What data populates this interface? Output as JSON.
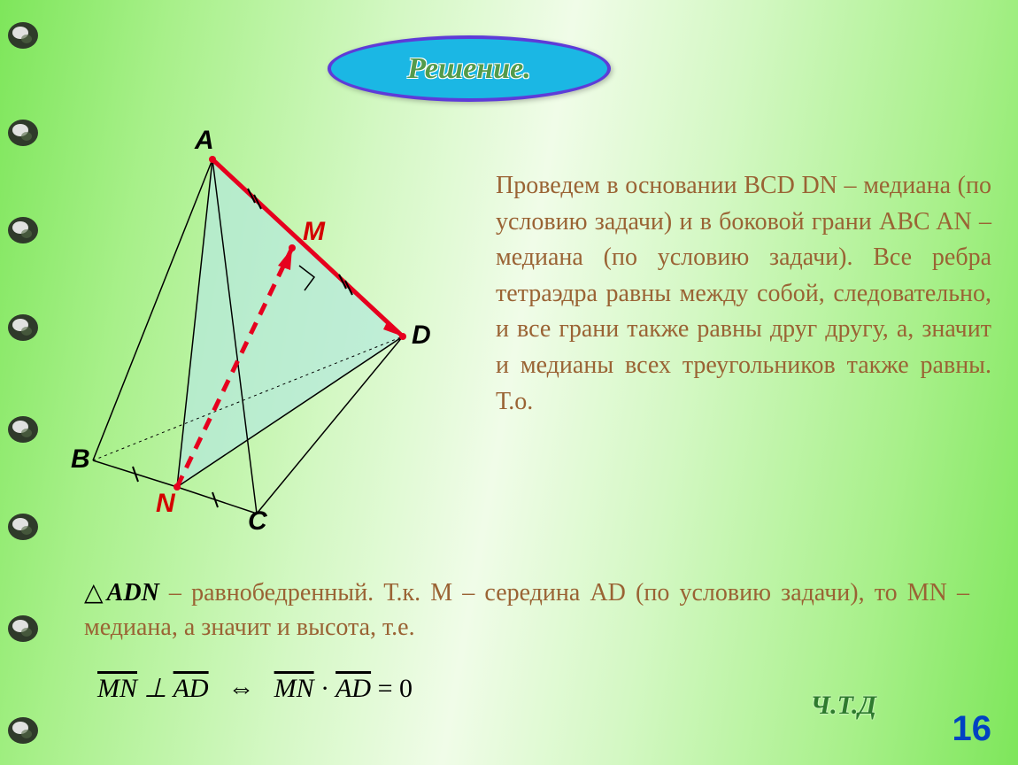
{
  "title": "Решение.",
  "labels": {
    "A": "A",
    "M": "M",
    "D": "D",
    "B": "B",
    "N": "N",
    "C": "C"
  },
  "colors": {
    "labelDefault": "#000000",
    "labelRed": "#d40000",
    "edgeRed": "#e6001e",
    "edgeBlack": "#000000",
    "faceFill": "#b6ead9",
    "bodyText": "#9a6334",
    "triangleBlack": "#000000"
  },
  "bodyText": "Проведем в основании BCD DN – медиана (по условию задачи) и в боковой грани ABC AN – медиана (по условию задачи). Все ребра тетраэдра равны между собой, следовательно, и все грани также равны друг другу, а, значит и медианы всех треугольников также равны. Т.о.",
  "lower": {
    "prefix": "ADN",
    "mid": " – равнобедренный. Т.к. M – середина AD (по условию задачи), то MN – медиана, а значит и высота, т.е."
  },
  "math": {
    "mn": "MN",
    "ad": "AD",
    "perp": "⊥",
    "iff": "⇔",
    "dot": "·",
    "eq0": "= 0"
  },
  "qed": "Ч.Т.Д",
  "pageNum": "16",
  "binderTops": [
    20,
    130,
    240,
    350,
    465,
    575,
    690,
    805
  ]
}
